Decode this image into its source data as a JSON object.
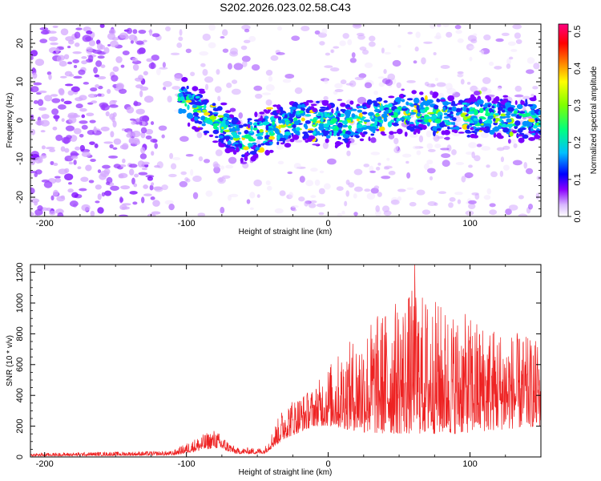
{
  "title": "S202.2026.023.02.58.C43",
  "colors": {
    "axis": "#000000",
    "snr_line": "#ee2222"
  },
  "chart_data": [
    {
      "type": "heatmap",
      "title": "S202.2026.023.02.58.C43",
      "xlabel": "Height of straight line (km)",
      "ylabel": "Frequency (Hz)",
      "xlim": [
        -210,
        150
      ],
      "ylim": [
        -25,
        25
      ],
      "xticks": [
        -200,
        -100,
        0,
        100
      ],
      "yticks": [
        -20,
        -10,
        0,
        10,
        20
      ],
      "colorbar": {
        "label": "Normalized spectral amplitude",
        "range": [
          0.0,
          0.52
        ],
        "ticks": [
          "0.0",
          "0.1",
          "0.2",
          "0.3",
          "0.4",
          "0.5"
        ],
        "colormap": [
          "#ffffff",
          "#8a00ff",
          "#0000ff",
          "#00ffff",
          "#00ff00",
          "#ffff00",
          "#ff8000",
          "#ff0000",
          "#ff0080"
        ]
      },
      "ridge": {
        "description_points": [
          {
            "x": -100,
            "freq": 5
          },
          {
            "x": -60,
            "freq": -5
          },
          {
            "x": -20,
            "freq": 0
          },
          {
            "x": 10,
            "freq": -1
          },
          {
            "x": 50,
            "freq": 2
          },
          {
            "x": 150,
            "freq": 0
          }
        ]
      }
    },
    {
      "type": "line",
      "xlabel": "Height of straight line (km)",
      "ylabel": "SNR (10 * v/v)",
      "xlim": [
        -210,
        150
      ],
      "ylim": [
        0,
        1250
      ],
      "xticks": [
        -200,
        -100,
        0,
        100
      ],
      "yticks": [
        0,
        200,
        400,
        600,
        800,
        1000,
        1200
      ],
      "series": [
        {
          "name": "SNR",
          "envelope": [
            {
              "x": -210,
              "low": 5,
              "high": 25
            },
            {
              "x": -110,
              "low": 10,
              "high": 40
            },
            {
              "x": -90,
              "low": 40,
              "high": 140
            },
            {
              "x": -80,
              "low": 60,
              "high": 180
            },
            {
              "x": -65,
              "low": 20,
              "high": 60
            },
            {
              "x": -45,
              "low": 20,
              "high": 60
            },
            {
              "x": -30,
              "low": 120,
              "high": 360
            },
            {
              "x": -10,
              "low": 200,
              "high": 450
            },
            {
              "x": 0,
              "low": 200,
              "high": 600
            },
            {
              "x": 30,
              "low": 150,
              "high": 900
            },
            {
              "x": 60,
              "low": 150,
              "high": 1100
            },
            {
              "x": 90,
              "low": 150,
              "high": 950
            },
            {
              "x": 150,
              "low": 200,
              "high": 750
            }
          ],
          "peak": {
            "x": 61,
            "value": 1250
          }
        }
      ]
    }
  ]
}
